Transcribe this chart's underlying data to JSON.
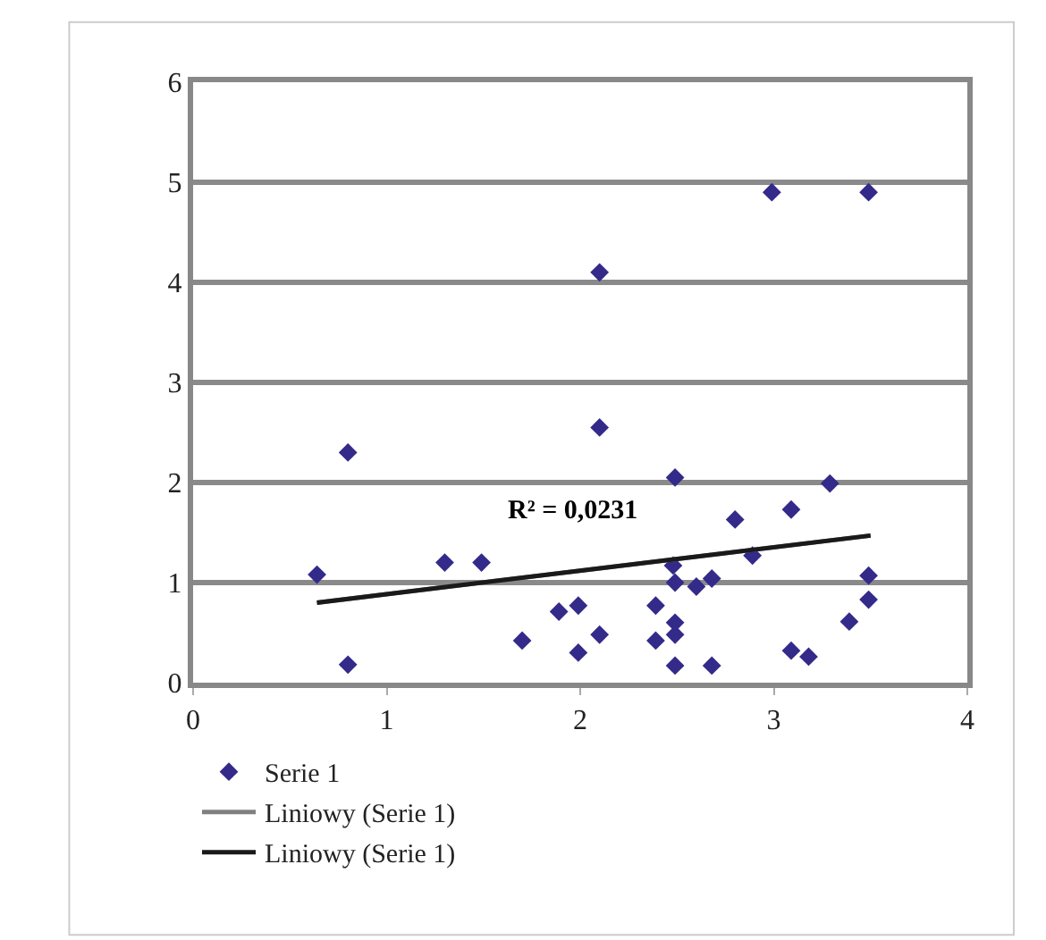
{
  "chart_data": {
    "type": "scatter",
    "annotations": [
      "R² = 0,0231"
    ],
    "xlim": [
      0,
      4
    ],
    "xticks": [
      0,
      1,
      2,
      3,
      4
    ],
    "ylim": [
      0,
      6
    ],
    "yticks": [
      0,
      1,
      2,
      3,
      4,
      5,
      6
    ],
    "grid": "y",
    "legend": "bottom",
    "series": [
      {
        "name": "Serie 1",
        "color": "#342a8a",
        "marker": "diamond",
        "x": [
          0.64,
          0.8,
          0.8,
          1.3,
          1.49,
          1.7,
          1.89,
          2.1,
          2.49,
          3.29,
          3.09,
          2.8,
          2.89,
          2.48,
          2.49,
          2.6,
          2.68,
          3.49,
          3.49,
          3.39,
          1.99,
          2.1,
          1.99,
          2.39,
          2.39,
          2.49,
          2.49,
          2.49,
          2.68,
          3.09,
          3.18,
          2.1,
          2.99,
          3.49
        ],
        "values": [
          1.08,
          2.3,
          0.18,
          1.2,
          1.2,
          0.42,
          0.71,
          2.55,
          2.05,
          1.99,
          1.73,
          1.63,
          1.27,
          1.17,
          1.0,
          0.96,
          1.04,
          1.07,
          0.83,
          0.61,
          0.77,
          0.48,
          0.3,
          0.77,
          0.42,
          0.6,
          0.48,
          0.17,
          0.17,
          0.32,
          0.26,
          4.1,
          4.9,
          4.9
        ]
      },
      {
        "name": "Liniowy (Serie 1)",
        "color": "#808080",
        "type": "line",
        "x": [
          0.64,
          3.5
        ],
        "values": [
          0.8,
          1.47
        ]
      },
      {
        "name": "Liniowy (Serie 1)",
        "color": "#1a1a1a",
        "type": "line",
        "x": [
          0.64,
          3.5
        ],
        "values": [
          0.8,
          1.47
        ]
      }
    ]
  }
}
